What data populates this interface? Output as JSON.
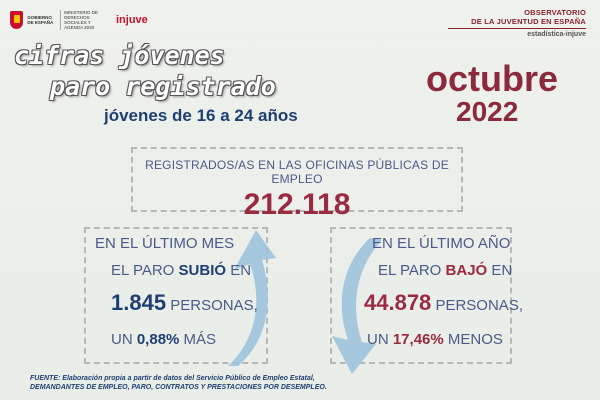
{
  "header": {
    "gobierno_text": "GOBIERNO DE ESPAÑA",
    "ministerio_text": "MINISTERIO DE DERECHOS SOCIALES Y AGENDA 2030",
    "injuve_text": "injuve",
    "observatorio_line1": "OBSERVATORIO",
    "observatorio_line2": "DE LA JUVENTUD EN ESPAÑA",
    "observatorio_line3": "estadística-injuve"
  },
  "title": {
    "line1": "cifras jóvenes",
    "line2": "paro registrado",
    "subtitle": "jóvenes de 16 a 24 años",
    "month": "octubre",
    "year": "2022"
  },
  "registered": {
    "label": "REGISTRADOS/AS EN LAS OFICINAS PÚBLICAS DE EMPLEO",
    "value": "212.118"
  },
  "last_month": {
    "line1": "EN EL ÚLTIMO MES",
    "line2_prefix": "EL PARO ",
    "line2_verb": "SUBIÓ",
    "line2_suffix": " EN",
    "amount": "1.845",
    "amount_suffix": " PERSONAS,",
    "pct_prefix": "UN ",
    "pct": "0,88%",
    "pct_suffix": " MÁS"
  },
  "last_year": {
    "line1": "EN EL ÚLTIMO AÑO",
    "line2_prefix": "EL PARO ",
    "line2_verb": "BAJÓ",
    "line2_suffix": " EN",
    "amount": "44.878",
    "amount_suffix": " PERSONAS,",
    "pct_prefix": "UN ",
    "pct": "17,46%",
    "pct_suffix": " MENOS"
  },
  "source": {
    "line1": "FUENTE: Elaboración propia a partir de datos del Servicio Público de Empleo Estatal,",
    "line2": "DEMANDANTES DE EMPLEO, PARO, CONTRATOS Y PRESTACIONES POR DESEMPLEO."
  },
  "colors": {
    "accent_red": "#9a2a40",
    "accent_blue": "#1f3f72",
    "arrow_blue": "#9fc3de"
  },
  "icons": {
    "up_arrow": "arrow-up-icon",
    "down_arrow": "arrow-down-icon"
  }
}
